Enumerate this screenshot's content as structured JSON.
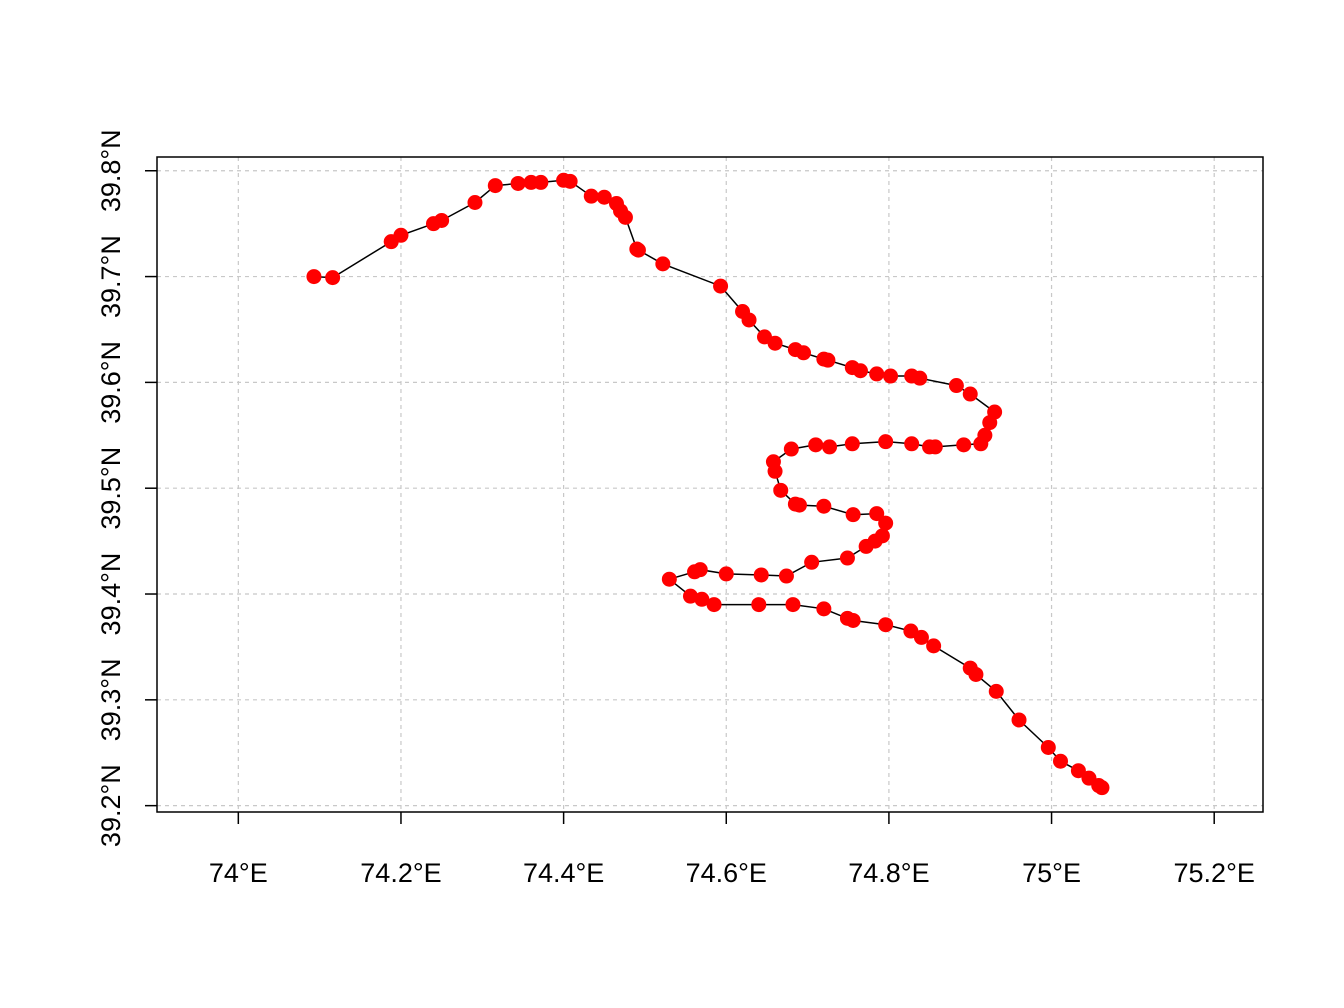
{
  "chart_data": {
    "type": "line",
    "title": "",
    "xlabel": "",
    "ylabel": "",
    "xlim": [
      73.9,
      75.26
    ],
    "ylim": [
      39.194,
      39.813
    ],
    "x_ticks": [
      {
        "value": 74.0,
        "label": "74°E"
      },
      {
        "value": 74.2,
        "label": "74.2°E"
      },
      {
        "value": 74.4,
        "label": "74.4°E"
      },
      {
        "value": 74.6,
        "label": "74.6°E"
      },
      {
        "value": 74.8,
        "label": "74.8°E"
      },
      {
        "value": 75.0,
        "label": "75°E"
      },
      {
        "value": 75.2,
        "label": "75.2°E"
      }
    ],
    "y_ticks": [
      {
        "value": 39.2,
        "label": "39.2°N"
      },
      {
        "value": 39.3,
        "label": "39.3°N"
      },
      {
        "value": 39.4,
        "label": "39.4°N"
      },
      {
        "value": 39.5,
        "label": "39.5°N"
      },
      {
        "value": 39.6,
        "label": "39.6°N"
      },
      {
        "value": 39.7,
        "label": "39.7°N"
      },
      {
        "value": 39.8,
        "label": "39.8°N"
      }
    ],
    "grid": true,
    "line_color": "#000000",
    "point_color": "#ff0000",
    "series": [
      {
        "x": [
          74.093,
          74.116,
          74.188,
          74.2,
          74.24,
          74.25,
          74.291,
          74.316,
          74.344,
          74.36,
          74.372,
          74.4,
          74.408,
          74.434,
          74.45,
          74.465,
          74.47,
          74.476,
          74.49,
          74.492,
          74.522,
          74.593,
          74.62,
          74.628,
          74.647,
          74.66,
          74.685,
          74.695,
          74.72,
          74.725,
          74.755,
          74.765,
          74.785,
          74.802,
          74.828,
          74.838,
          74.883,
          74.9,
          74.93,
          74.924,
          74.918,
          74.913,
          74.892,
          74.857,
          74.85,
          74.828,
          74.796,
          74.755,
          74.727,
          74.71,
          74.68,
          74.658,
          74.66,
          74.667,
          74.685,
          74.69,
          74.72,
          74.756,
          74.785,
          74.796,
          74.792,
          74.783,
          74.772,
          74.749,
          74.705,
          74.674,
          74.643,
          74.6,
          74.568,
          74.561,
          74.53,
          74.556,
          74.57,
          74.585,
          74.64,
          74.682,
          74.72,
          74.749,
          74.756,
          74.796,
          74.827,
          74.84,
          74.855,
          74.9,
          74.907,
          74.932,
          74.96,
          74.996,
          75.011,
          75.033,
          75.046,
          75.058,
          75.062
        ],
        "y": [
          39.7,
          39.699,
          39.733,
          39.739,
          39.75,
          39.753,
          39.77,
          39.786,
          39.788,
          39.789,
          39.789,
          39.791,
          39.79,
          39.776,
          39.775,
          39.769,
          39.762,
          39.756,
          39.726,
          39.725,
          39.712,
          39.691,
          39.667,
          39.659,
          39.643,
          39.637,
          39.631,
          39.628,
          39.622,
          39.621,
          39.614,
          39.611,
          39.608,
          39.606,
          39.606,
          39.604,
          39.597,
          39.589,
          39.572,
          39.562,
          39.55,
          39.542,
          39.541,
          39.539,
          39.539,
          39.542,
          39.544,
          39.542,
          39.539,
          39.541,
          39.537,
          39.525,
          39.516,
          39.498,
          39.485,
          39.484,
          39.483,
          39.475,
          39.476,
          39.467,
          39.455,
          39.45,
          39.445,
          39.434,
          39.43,
          39.417,
          39.418,
          39.419,
          39.423,
          39.421,
          39.414,
          39.398,
          39.395,
          39.39,
          39.39,
          39.39,
          39.386,
          39.377,
          39.375,
          39.371,
          39.365,
          39.359,
          39.351,
          39.33,
          39.324,
          39.308,
          39.281,
          39.255,
          39.242,
          39.233,
          39.226,
          39.219,
          39.217
        ]
      }
    ]
  }
}
